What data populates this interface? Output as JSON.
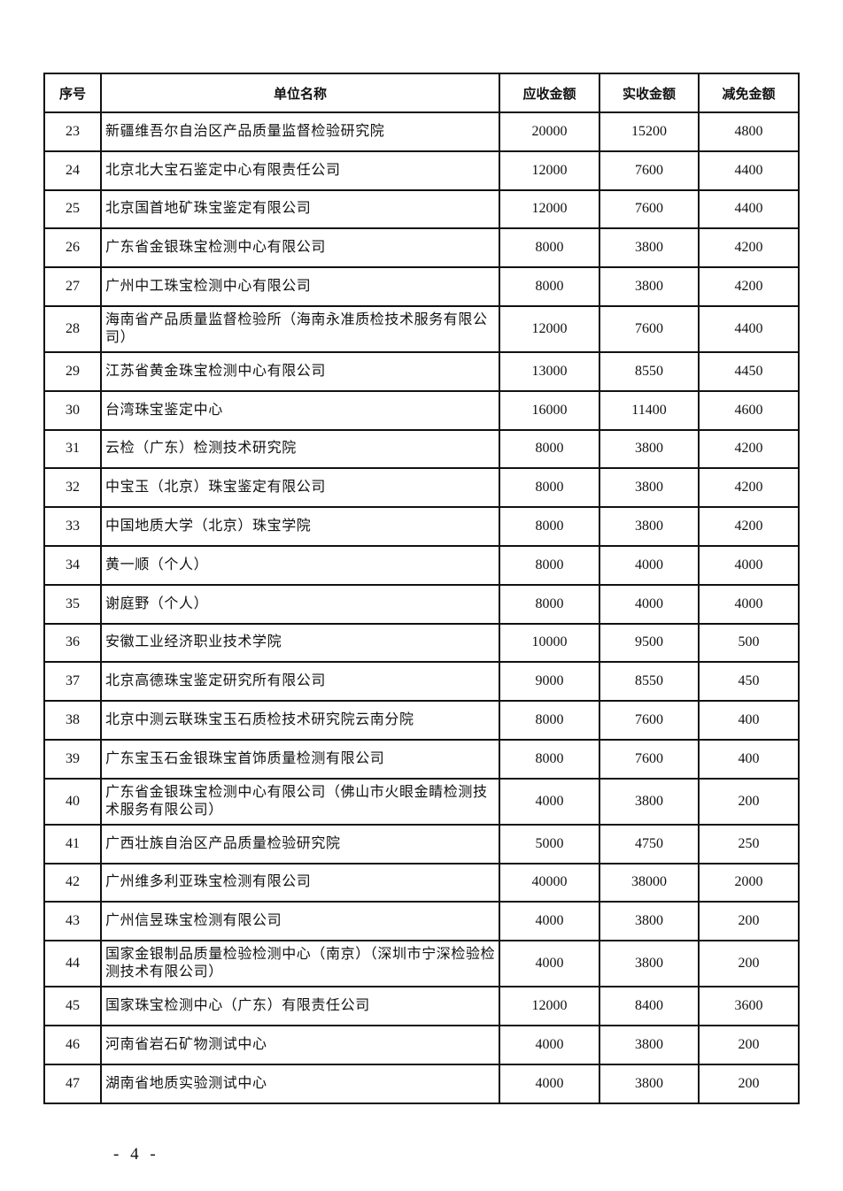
{
  "table": {
    "headers": [
      "序号",
      "单位名称",
      "应收金额",
      "实收金额",
      "减免金额"
    ],
    "rows": [
      [
        "23",
        "新疆维吾尔自治区产品质量监督检验研究院",
        "20000",
        "15200",
        "4800"
      ],
      [
        "24",
        "北京北大宝石鉴定中心有限责任公司",
        "12000",
        "7600",
        "4400"
      ],
      [
        "25",
        "北京国首地矿珠宝鉴定有限公司",
        "12000",
        "7600",
        "4400"
      ],
      [
        "26",
        "广东省金银珠宝检测中心有限公司",
        "8000",
        "3800",
        "4200"
      ],
      [
        "27",
        "广州中工珠宝检测中心有限公司",
        "8000",
        "3800",
        "4200"
      ],
      [
        "28",
        "海南省产品质量监督检验所（海南永准质检技术服务有限公司）",
        "12000",
        "7600",
        "4400"
      ],
      [
        "29",
        "江苏省黄金珠宝检测中心有限公司",
        "13000",
        "8550",
        "4450"
      ],
      [
        "30",
        "台湾珠宝鉴定中心",
        "16000",
        "11400",
        "4600"
      ],
      [
        "31",
        "云检（广东）检测技术研究院",
        "8000",
        "3800",
        "4200"
      ],
      [
        "32",
        "中宝玉（北京）珠宝鉴定有限公司",
        "8000",
        "3800",
        "4200"
      ],
      [
        "33",
        "中国地质大学（北京）珠宝学院",
        "8000",
        "3800",
        "4200"
      ],
      [
        "34",
        "黄一顺（个人）",
        "8000",
        "4000",
        "4000"
      ],
      [
        "35",
        "谢庭野（个人）",
        "8000",
        "4000",
        "4000"
      ],
      [
        "36",
        "安徽工业经济职业技术学院",
        "10000",
        "9500",
        "500"
      ],
      [
        "37",
        "北京高德珠宝鉴定研究所有限公司",
        "9000",
        "8550",
        "450"
      ],
      [
        "38",
        "北京中测云联珠宝玉石质检技术研究院云南分院",
        "8000",
        "7600",
        "400"
      ],
      [
        "39",
        "广东宝玉石金银珠宝首饰质量检测有限公司",
        "8000",
        "7600",
        "400"
      ],
      [
        "40",
        "广东省金银珠宝检测中心有限公司（佛山市火眼金睛检测技术服务有限公司）",
        "4000",
        "3800",
        "200"
      ],
      [
        "41",
        "广西壮族自治区产品质量检验研究院",
        "5000",
        "4750",
        "250"
      ],
      [
        "42",
        "广州维多利亚珠宝检测有限公司",
        "40000",
        "38000",
        "2000"
      ],
      [
        "43",
        "广州信昱珠宝检测有限公司",
        "4000",
        "3800",
        "200"
      ],
      [
        "44",
        "国家金银制品质量检验检测中心（南京）（深圳市宁深检验检测技术有限公司）",
        "4000",
        "3800",
        "200"
      ],
      [
        "45",
        "国家珠宝检测中心（广东）有限责任公司",
        "12000",
        "8400",
        "3600"
      ],
      [
        "46",
        "河南省岩石矿物测试中心",
        "4000",
        "3800",
        "200"
      ],
      [
        "47",
        "湖南省地质实验测试中心",
        "4000",
        "3800",
        "200"
      ]
    ]
  },
  "footer": {
    "page_number": "- 4 -"
  }
}
